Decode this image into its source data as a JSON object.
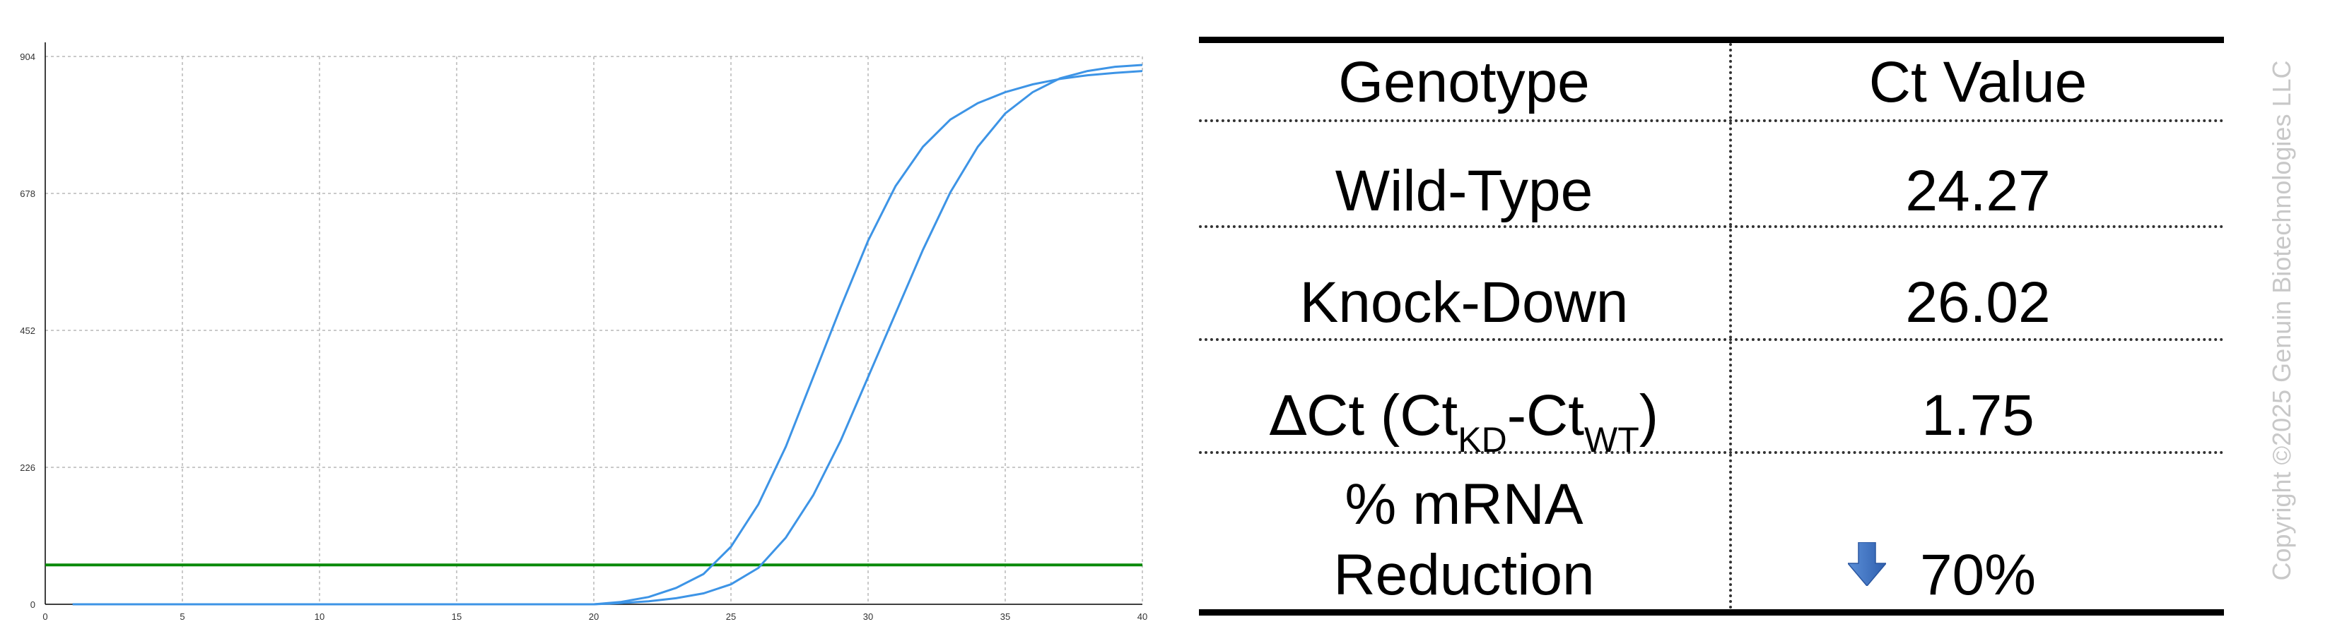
{
  "chart_data": {
    "type": "line",
    "xlim": [
      0,
      40
    ],
    "ylim": [
      0,
      904
    ],
    "x_ticks": [
      0,
      5,
      10,
      15,
      20,
      25,
      30,
      35,
      40
    ],
    "y_ticks": [
      0,
      226,
      452,
      678,
      904
    ],
    "grid": true,
    "threshold": 65,
    "series": [
      {
        "x": [
          1,
          20,
          21,
          22,
          23,
          24,
          25,
          26,
          27,
          28,
          29,
          30,
          31,
          32,
          33,
          34,
          35,
          36,
          37,
          38,
          39,
          40
        ],
        "y": [
          0,
          0,
          4,
          12,
          27,
          50,
          95,
          165,
          260,
          375,
          490,
          600,
          690,
          755,
          800,
          827,
          845,
          858,
          867,
          873,
          877,
          880
        ]
      },
      {
        "x": [
          1,
          20,
          21,
          22,
          23,
          24,
          25,
          26,
          27,
          28,
          29,
          30,
          31,
          32,
          33,
          34,
          35,
          36,
          37,
          38,
          39,
          40
        ],
        "y": [
          0,
          0,
          2,
          5,
          10,
          18,
          33,
          60,
          110,
          180,
          270,
          375,
          480,
          585,
          680,
          755,
          810,
          845,
          868,
          880,
          887,
          890
        ]
      }
    ]
  },
  "colors": {
    "curve": "#3d94e6",
    "threshold": "#0a8a0a",
    "grid": "#b8b8b8",
    "arrow": "#3c6fc0"
  },
  "table": {
    "header_genotype": "Genotype",
    "header_ct": "Ct Value",
    "row_wt_label": "Wild-Type",
    "row_wt_value": "24.27",
    "row_kd_label": "Knock-Down",
    "row_kd_value": "26.02",
    "delta_symbol": "∆",
    "delta_ct": "Ct (Ct",
    "sub_kd": "KD",
    "dash_ct": "-Ct",
    "sub_wt": "WT",
    "close_paren": ")",
    "delta_value": "1.75",
    "reduction_line1": "% mRNA",
    "reduction_line2": "Reduction",
    "reduction_value": "70%",
    "arrow_icon": "down-arrow-icon"
  },
  "watermark": "Copyright ©2025 Genuin Biotechnologies LLC"
}
